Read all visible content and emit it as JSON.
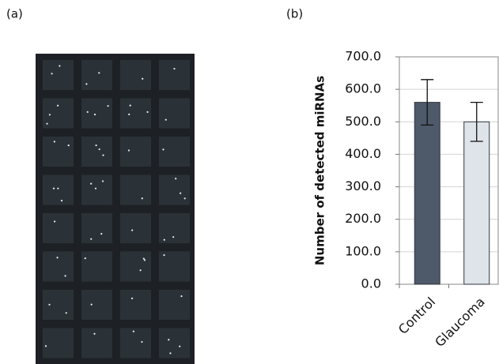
{
  "panels": {
    "a": "(a)",
    "b": "(b)"
  },
  "chart_data": {
    "type": "bar",
    "ylabel": "Number of detected miRNAs",
    "categories": [
      "Control",
      "Glaucoma"
    ],
    "values": [
      560,
      500
    ],
    "errors": [
      70,
      60
    ],
    "colors": [
      "#4e5a6a",
      "#dfe3ea"
    ],
    "edge_color": "#2f3640",
    "ylim": [
      0,
      700
    ],
    "yticks": [
      {
        "value": 0,
        "label": "0.0"
      },
      {
        "value": 100,
        "label": "100.0"
      },
      {
        "value": 200,
        "label": "200.0"
      },
      {
        "value": 300,
        "label": "300.0"
      },
      {
        "value": 400,
        "label": "400.0"
      },
      {
        "value": 500,
        "label": "500.0"
      },
      {
        "value": 600,
        "label": "600.0"
      },
      {
        "value": 700,
        "label": "700.0"
      }
    ],
    "grid": true
  }
}
